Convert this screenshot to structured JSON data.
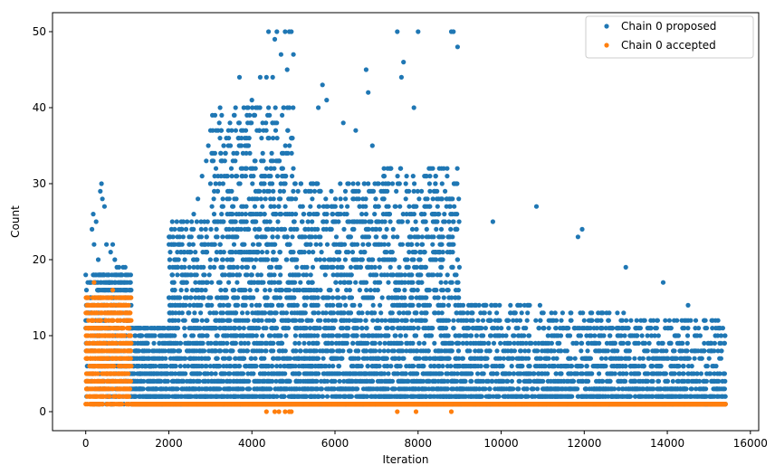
{
  "chart_data": {
    "type": "scatter",
    "xlabel": "Iteration",
    "ylabel": "Count",
    "xlim": [
      -800,
      16200
    ],
    "ylim": [
      -2.5,
      52.5
    ],
    "xticks": [
      0,
      2000,
      4000,
      6000,
      8000,
      10000,
      12000,
      14000,
      16000
    ],
    "yticks": [
      0,
      10,
      20,
      30,
      40,
      50
    ],
    "grid": false,
    "legend_position": "top-right",
    "series": [
      {
        "name": "Chain 0 proposed",
        "color": "#1f77b4",
        "regions": [
          {
            "x": [
              0,
              1100
            ],
            "max": 18,
            "bias": 1.0,
            "n": 520
          },
          {
            "x": [
              1100,
              2000
            ],
            "max": 11,
            "bias": 1.8,
            "n": 520
          },
          {
            "x": [
              2000,
              3000
            ],
            "max": 25,
            "bias": 2.0,
            "n": 640
          },
          {
            "x": [
              3000,
              5000
            ],
            "max": 40,
            "bias": 2.2,
            "n": 1500
          },
          {
            "x": [
              5000,
              7000
            ],
            "max": 30,
            "bias": 2.2,
            "n": 1300
          },
          {
            "x": [
              7000,
              9000
            ],
            "max": 32,
            "bias": 2.2,
            "n": 1300
          },
          {
            "x": [
              9000,
              11000
            ],
            "max": 14,
            "bias": 2.4,
            "n": 800
          },
          {
            "x": [
              11000,
              13000
            ],
            "max": 13,
            "bias": 2.6,
            "n": 800
          },
          {
            "x": [
              13000,
              15400
            ],
            "max": 12,
            "bias": 2.6,
            "n": 900
          }
        ],
        "points": [
          [
            0,
            18
          ],
          [
            50,
            17
          ],
          [
            150,
            24
          ],
          [
            180,
            26
          ],
          [
            200,
            22
          ],
          [
            250,
            25
          ],
          [
            300,
            20
          ],
          [
            350,
            29
          ],
          [
            380,
            30
          ],
          [
            400,
            28
          ],
          [
            450,
            27
          ],
          [
            500,
            22
          ],
          [
            550,
            18
          ],
          [
            600,
            21
          ],
          [
            650,
            22
          ],
          [
            700,
            20
          ],
          [
            750,
            19
          ],
          [
            800,
            19
          ],
          [
            850,
            18
          ],
          [
            900,
            19
          ],
          [
            950,
            19
          ],
          [
            1000,
            18
          ],
          [
            2300,
            25
          ],
          [
            2500,
            22
          ],
          [
            2600,
            26
          ],
          [
            2700,
            28
          ],
          [
            2800,
            31
          ],
          [
            2900,
            33
          ],
          [
            2950,
            35
          ],
          [
            3000,
            30
          ],
          [
            3050,
            39
          ],
          [
            3700,
            44
          ],
          [
            3900,
            38
          ],
          [
            4000,
            41
          ],
          [
            4050,
            39
          ],
          [
            4200,
            44
          ],
          [
            4350,
            44
          ],
          [
            4400,
            50
          ],
          [
            4500,
            44
          ],
          [
            4550,
            49
          ],
          [
            4600,
            50
          ],
          [
            4700,
            47
          ],
          [
            4800,
            50
          ],
          [
            4850,
            45
          ],
          [
            4900,
            50
          ],
          [
            4950,
            50
          ],
          [
            5000,
            47
          ],
          [
            5600,
            40
          ],
          [
            5700,
            43
          ],
          [
            5800,
            41
          ],
          [
            6200,
            38
          ],
          [
            6500,
            37
          ],
          [
            6750,
            45
          ],
          [
            6800,
            42
          ],
          [
            6900,
            35
          ],
          [
            7500,
            50
          ],
          [
            7600,
            44
          ],
          [
            7650,
            46
          ],
          [
            7900,
            40
          ],
          [
            8000,
            50
          ],
          [
            8800,
            50
          ],
          [
            8850,
            50
          ],
          [
            8950,
            48
          ],
          [
            9800,
            25
          ],
          [
            10850,
            27
          ],
          [
            11850,
            23
          ],
          [
            11950,
            24
          ],
          [
            13000,
            19
          ],
          [
            13900,
            17
          ],
          [
            14500,
            14
          ]
        ]
      },
      {
        "name": "Chain 0 accepted",
        "color": "#ff7f0e",
        "regions": [
          {
            "x": [
              0,
              1100
            ],
            "max": 15,
            "bias": 1.0,
            "n": 700
          },
          {
            "x": [
              1100,
              15400
            ],
            "max": 1,
            "bias": 1.0,
            "n": 2600
          }
        ],
        "points": [
          [
            0,
            1
          ],
          [
            100,
            1
          ],
          [
            300,
            1
          ],
          [
            200,
            17
          ],
          [
            650,
            16
          ],
          [
            900,
            3
          ],
          [
            950,
            2
          ],
          [
            1000,
            3
          ],
          [
            4350,
            0
          ],
          [
            4550,
            0
          ],
          [
            4650,
            0
          ],
          [
            4800,
            0
          ],
          [
            4900,
            0
          ],
          [
            4950,
            0
          ],
          [
            7500,
            0
          ],
          [
            7950,
            0
          ],
          [
            8800,
            0
          ]
        ]
      }
    ]
  }
}
